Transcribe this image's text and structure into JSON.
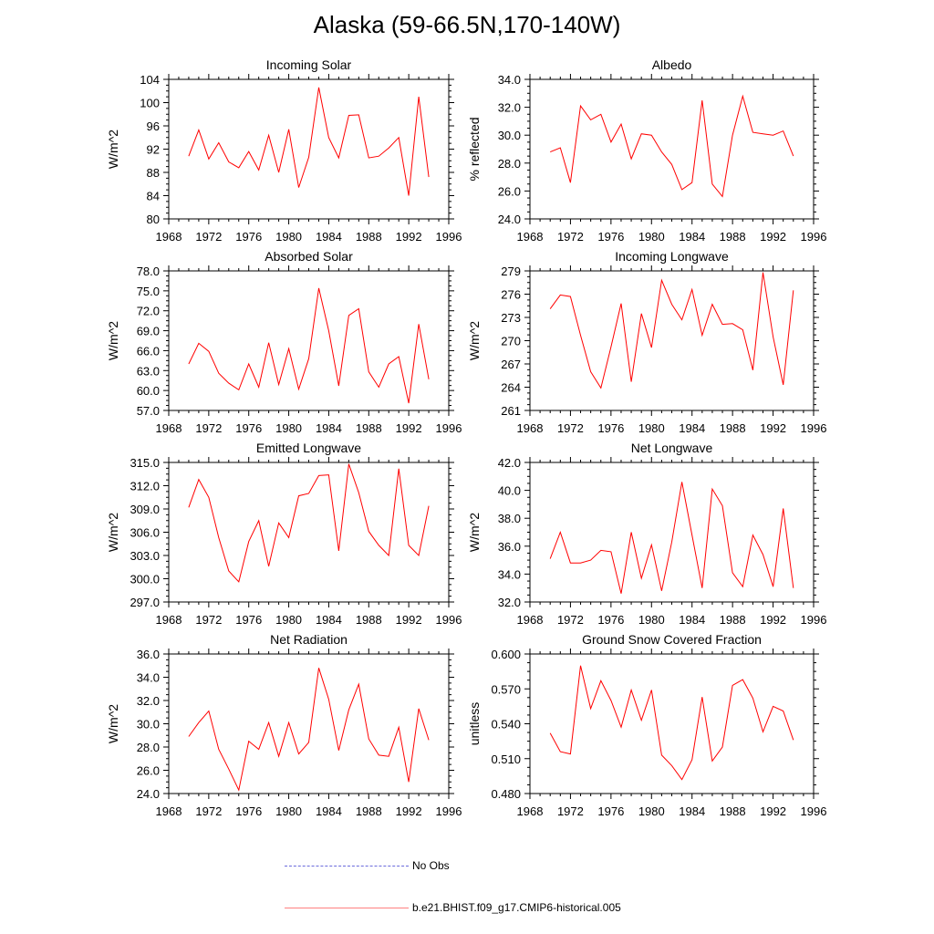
{
  "title": "Alaska (59-66.5N,170-140W)",
  "legend": {
    "obs_label": "No Obs",
    "model_label": "b.e21.BHIST.f09_g17.CMIP6-historical.005",
    "obs_color": "#6a6adc",
    "model_color": "#ff0000"
  },
  "chart_data": [
    {
      "type": "line",
      "title": "Incoming Solar",
      "xlabel": "",
      "ylabel": "W/m^2",
      "xlim": [
        1968,
        1996
      ],
      "ylim": [
        80,
        104
      ],
      "xticks": [
        1968,
        1972,
        1976,
        1980,
        1984,
        1988,
        1992,
        1996
      ],
      "yticks": [
        "80",
        "84",
        "88",
        "92",
        "96",
        "100",
        "104"
      ],
      "series": [
        {
          "x": [
            1970,
            1971,
            1972,
            1973,
            1974,
            1975,
            1976,
            1977,
            1978,
            1979,
            1980,
            1981,
            1982,
            1983,
            1984,
            1985,
            1986,
            1987,
            1988,
            1989,
            1990,
            1991,
            1992,
            1993,
            1994
          ],
          "values": [
            90.8,
            95.3,
            90.3,
            93.1,
            89.8,
            88.8,
            91.6,
            88.4,
            94.4,
            88.0,
            95.4,
            85.4,
            90.6,
            102.6,
            94.0,
            90.5,
            97.8,
            97.9,
            90.5,
            90.8,
            92.2,
            94.0,
            84.0,
            101.0,
            87.2
          ]
        }
      ]
    },
    {
      "type": "line",
      "title": "Albedo",
      "xlabel": "",
      "ylabel": "% reflected",
      "xlim": [
        1968,
        1996
      ],
      "ylim": [
        24,
        34
      ],
      "xticks": [
        1968,
        1972,
        1976,
        1980,
        1984,
        1988,
        1992,
        1996
      ],
      "yticks": [
        "24.0",
        "26.0",
        "28.0",
        "30.0",
        "32.0",
        "34.0"
      ],
      "series": [
        {
          "x": [
            1970,
            1971,
            1972,
            1973,
            1974,
            1975,
            1976,
            1977,
            1978,
            1979,
            1980,
            1981,
            1982,
            1983,
            1984,
            1985,
            1986,
            1987,
            1988,
            1989,
            1990,
            1991,
            1992,
            1993,
            1994
          ],
          "values": [
            28.8,
            29.1,
            26.6,
            32.1,
            31.1,
            31.5,
            29.5,
            30.8,
            28.3,
            30.1,
            30.0,
            28.8,
            27.9,
            26.1,
            26.6,
            32.5,
            26.5,
            25.6,
            30.0,
            32.8,
            30.2,
            30.1,
            30.0,
            30.3,
            28.5
          ]
        }
      ]
    },
    {
      "type": "line",
      "title": "Absorbed Solar",
      "xlabel": "",
      "ylabel": "W/m^2",
      "xlim": [
        1968,
        1996
      ],
      "ylim": [
        57,
        78
      ],
      "xticks": [
        1968,
        1972,
        1976,
        1980,
        1984,
        1988,
        1992,
        1996
      ],
      "yticks": [
        "57.0",
        "60.0",
        "63.0",
        "66.0",
        "69.0",
        "72.0",
        "75.0",
        "78.0"
      ],
      "series": [
        {
          "x": [
            1970,
            1971,
            1972,
            1973,
            1974,
            1975,
            1976,
            1977,
            1978,
            1979,
            1980,
            1981,
            1982,
            1983,
            1984,
            1985,
            1986,
            1987,
            1988,
            1989,
            1990,
            1991,
            1992,
            1993,
            1994
          ],
          "values": [
            64.0,
            67.1,
            65.9,
            62.6,
            61.1,
            60.1,
            64.0,
            60.5,
            67.2,
            60.9,
            66.3,
            60.2,
            64.8,
            75.4,
            69.0,
            60.7,
            71.3,
            72.3,
            62.8,
            60.5,
            64.0,
            65.1,
            58.1,
            70.0,
            61.7
          ]
        }
      ]
    },
    {
      "type": "line",
      "title": "Incoming Longwave",
      "xlabel": "",
      "ylabel": "W/m^2",
      "xlim": [
        1968,
        1996
      ],
      "ylim": [
        261,
        279
      ],
      "xticks": [
        1968,
        1972,
        1976,
        1980,
        1984,
        1988,
        1992,
        1996
      ],
      "yticks": [
        "261",
        "264",
        "267",
        "270",
        "273",
        "276",
        "279"
      ],
      "series": [
        {
          "x": [
            1970,
            1971,
            1972,
            1973,
            1974,
            1975,
            1976,
            1977,
            1978,
            1979,
            1980,
            1981,
            1982,
            1983,
            1984,
            1985,
            1986,
            1987,
            1988,
            1989,
            1990,
            1991,
            1992,
            1993,
            1994
          ],
          "values": [
            274.1,
            275.9,
            275.7,
            270.7,
            266.0,
            263.9,
            269.2,
            274.8,
            264.7,
            273.5,
            269.1,
            277.8,
            274.7,
            272.7,
            276.6,
            270.7,
            274.7,
            272.1,
            272.2,
            271.4,
            266.2,
            278.8,
            270.5,
            264.3,
            276.5
          ]
        }
      ]
    },
    {
      "type": "line",
      "title": "Emitted Longwave",
      "xlabel": "",
      "ylabel": "W/m^2",
      "xlim": [
        1968,
        1996
      ],
      "ylim": [
        297,
        315
      ],
      "xticks": [
        1968,
        1972,
        1976,
        1980,
        1984,
        1988,
        1992,
        1996
      ],
      "yticks": [
        "297.0",
        "300.0",
        "303.0",
        "306.0",
        "309.0",
        "312.0",
        "315.0"
      ],
      "series": [
        {
          "x": [
            1970,
            1971,
            1972,
            1973,
            1974,
            1975,
            1976,
            1977,
            1978,
            1979,
            1980,
            1981,
            1982,
            1983,
            1984,
            1985,
            1986,
            1987,
            1988,
            1989,
            1990,
            1991,
            1992,
            1993,
            1994
          ],
          "values": [
            309.2,
            312.8,
            310.5,
            305.3,
            301.0,
            299.6,
            304.8,
            307.5,
            301.6,
            307.2,
            305.3,
            310.7,
            311.0,
            313.3,
            313.4,
            303.6,
            314.8,
            311.1,
            306.1,
            304.3,
            303.0,
            314.2,
            304.3,
            303.0,
            309.4
          ]
        }
      ]
    },
    {
      "type": "line",
      "title": "Net Longwave",
      "xlabel": "",
      "ylabel": "W/m^2",
      "xlim": [
        1968,
        1996
      ],
      "ylim": [
        32,
        42
      ],
      "xticks": [
        1968,
        1972,
        1976,
        1980,
        1984,
        1988,
        1992,
        1996
      ],
      "yticks": [
        "32.0",
        "34.0",
        "36.0",
        "38.0",
        "40.0",
        "42.0"
      ],
      "series": [
        {
          "x": [
            1970,
            1971,
            1972,
            1973,
            1974,
            1975,
            1976,
            1977,
            1978,
            1979,
            1980,
            1981,
            1982,
            1983,
            1984,
            1985,
            1986,
            1987,
            1988,
            1989,
            1990,
            1991,
            1992,
            1993,
            1994
          ],
          "values": [
            35.1,
            37.0,
            34.8,
            34.8,
            35.0,
            35.7,
            35.6,
            32.6,
            37.0,
            33.7,
            36.1,
            32.8,
            36.3,
            40.6,
            36.8,
            33.0,
            40.1,
            38.9,
            34.1,
            33.1,
            36.8,
            35.4,
            33.1,
            38.7,
            33.0
          ]
        }
      ]
    },
    {
      "type": "line",
      "title": "Net Radiation",
      "xlabel": "",
      "ylabel": "W/m^2",
      "xlim": [
        1968,
        1996
      ],
      "ylim": [
        24,
        36
      ],
      "xticks": [
        1968,
        1972,
        1976,
        1980,
        1984,
        1988,
        1992,
        1996
      ],
      "yticks": [
        "24.0",
        "26.0",
        "28.0",
        "30.0",
        "32.0",
        "34.0",
        "36.0"
      ],
      "series": [
        {
          "x": [
            1970,
            1971,
            1972,
            1973,
            1974,
            1975,
            1976,
            1977,
            1978,
            1979,
            1980,
            1981,
            1982,
            1983,
            1984,
            1985,
            1986,
            1987,
            1988,
            1989,
            1990,
            1991,
            1992,
            1993,
            1994
          ],
          "values": [
            28.9,
            30.1,
            31.1,
            27.8,
            26.1,
            24.3,
            28.5,
            27.8,
            30.1,
            27.2,
            30.1,
            27.4,
            28.4,
            34.8,
            32.1,
            27.7,
            31.2,
            33.4,
            28.7,
            27.3,
            27.2,
            29.7,
            25.0,
            31.3,
            28.6
          ]
        }
      ]
    },
    {
      "type": "line",
      "title": "Ground Snow Covered Fraction",
      "xlabel": "",
      "ylabel": "unitless",
      "xlim": [
        1968,
        1996
      ],
      "ylim": [
        0.48,
        0.6
      ],
      "xticks": [
        1968,
        1972,
        1976,
        1980,
        1984,
        1988,
        1992,
        1996
      ],
      "yticks": [
        "0.480",
        "0.510",
        "0.540",
        "0.570",
        "0.600"
      ],
      "series": [
        {
          "x": [
            1970,
            1971,
            1972,
            1973,
            1974,
            1975,
            1976,
            1977,
            1978,
            1979,
            1980,
            1981,
            1982,
            1983,
            1984,
            1985,
            1986,
            1987,
            1988,
            1989,
            1990,
            1991,
            1992,
            1993,
            1994
          ],
          "values": [
            0.532,
            0.516,
            0.514,
            0.59,
            0.553,
            0.577,
            0.56,
            0.537,
            0.569,
            0.543,
            0.569,
            0.513,
            0.504,
            0.492,
            0.509,
            0.563,
            0.508,
            0.52,
            0.573,
            0.578,
            0.562,
            0.533,
            0.555,
            0.551,
            0.526
          ]
        }
      ]
    }
  ]
}
